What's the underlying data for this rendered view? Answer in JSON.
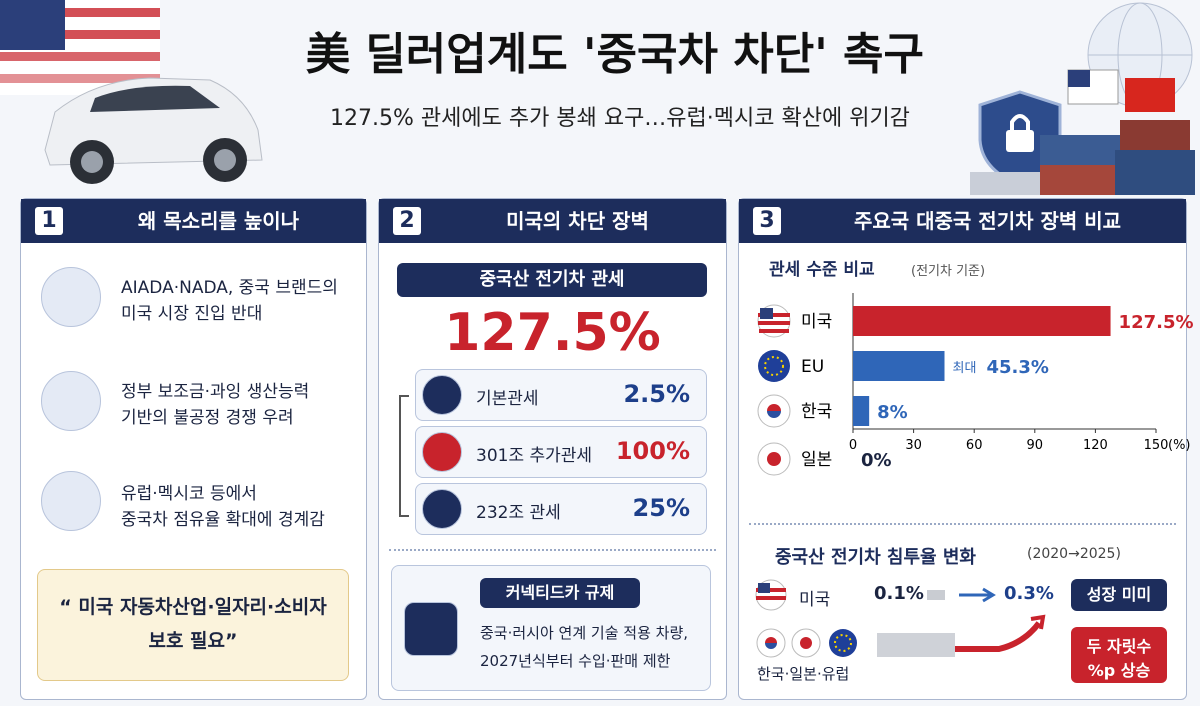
{
  "header": {
    "title": "美 딜러업계도 '중국차 차단' 촉구",
    "subtitle": "127.5% 관세에도 추가 봉쇄 요구…유럽·멕시코 확산에 위기감"
  },
  "panel1": {
    "number": "1",
    "title": "왜 목소리를 높이나",
    "items": [
      [
        "AIADA·NADA, 중국 브랜드의",
        "미국 시장 진입 반대"
      ],
      [
        "정부 보조금·과잉 생산능력",
        "기반의 불공정 경쟁 우려"
      ],
      [
        "유럽·멕시코 등에서",
        "중국차 점유율 확대에 경계감"
      ]
    ],
    "quote": [
      "“ 미국 자동차산업·일자리·소비자",
      "보호 필요”"
    ]
  },
  "panel2": {
    "number": "2",
    "title": "미국의 차단 장벽",
    "tariff_label": "중국산 전기차 관세",
    "tariff_total": "127.5%",
    "components": [
      {
        "label": "기본관세",
        "value": "2.5%"
      },
      {
        "label": "301조 추가관세",
        "value": "100%"
      },
      {
        "label": "232조 관세",
        "value": "25%"
      }
    ],
    "regulation_title": "커넥티드카 규제",
    "regulation_text": [
      "중국·러시아 연계 기술 적용 차량,",
      "2027년식부터 수입·판매 제한"
    ]
  },
  "panel3": {
    "number": "3",
    "title": "주요국 대중국 전기차 장벽 비교",
    "penetration": {
      "title": "중국산 전기차 침투율 변화",
      "period": "(2020→2025)",
      "us": {
        "label": "미국",
        "from": "0.1%",
        "to": "0.3%",
        "badge": "성장 미미"
      },
      "others": {
        "label": "한국·일본·유럽",
        "badge": [
          "두 자릿수",
          "%p 상승"
        ]
      }
    }
  },
  "chart_data": {
    "type": "bar",
    "orientation": "horizontal",
    "title": "관세 수준 비교",
    "subtitle": "(전기차 기준)",
    "categories": [
      "미국",
      "EU",
      "한국",
      "일본"
    ],
    "values": [
      127.5,
      45.3,
      8,
      0
    ],
    "value_labels": [
      "127.5%",
      "45.3%",
      "8%",
      "0%"
    ],
    "annotation": {
      "category": "EU",
      "text": "최대"
    },
    "colors": [
      "#c8232c",
      "#2f66b8",
      "#2f66b8",
      "#2f66b8"
    ],
    "label_colors": [
      "#c8232c",
      "#2f66b8",
      "#2f66b8",
      "#1b2440"
    ],
    "xlim": [
      0,
      150
    ],
    "xticks": [
      0,
      30,
      60,
      90,
      120,
      150
    ],
    "x_unit": "(%)"
  }
}
